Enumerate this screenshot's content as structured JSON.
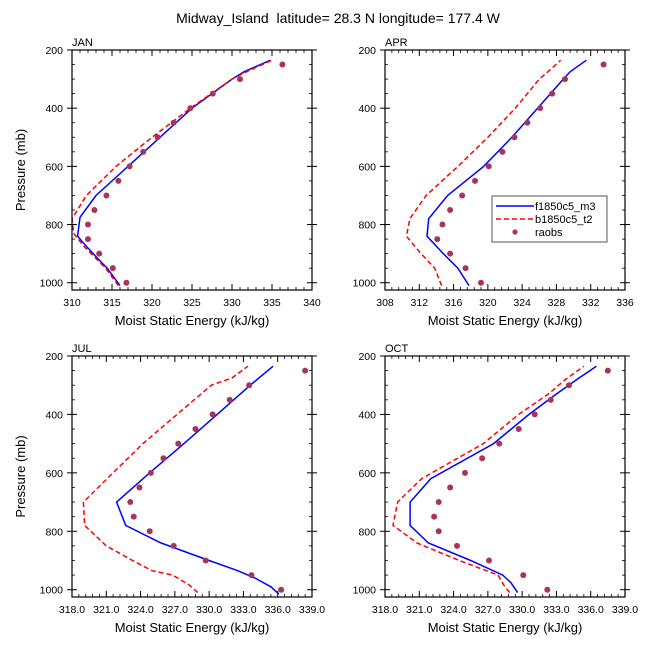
{
  "title": "Midway_Island  latitude= 28.3 N longitude= 177.4 W",
  "colors": {
    "model1": "#0000ff",
    "model2": "#ff0000",
    "obs": "#a8345e"
  },
  "legend": {
    "placement": "inside APR panel, lower-right",
    "entries": [
      {
        "label": "f1850c5_m3",
        "style": "solid line"
      },
      {
        "label": "b1850c5_t2",
        "style": "dashed line"
      },
      {
        "label": "raobs",
        "style": "marker"
      }
    ]
  },
  "chart_data": [
    {
      "type": "line",
      "panel": "JAN",
      "title": "JAN",
      "xlabel": "Moist Static Energy (kJ/kg)",
      "ylabel": "Pressure (mb)",
      "xlim": [
        310,
        340
      ],
      "ylim": [
        1025,
        200
      ],
      "xticks": [
        "310",
        "315",
        "320",
        "325",
        "330",
        "335",
        "340"
      ],
      "xtick_values": [
        310,
        315,
        320,
        325,
        330,
        335,
        340
      ],
      "yticks": [
        "200",
        "400",
        "600",
        "800",
        "1000"
      ],
      "ytick_values": [
        200,
        400,
        600,
        800,
        1000
      ],
      "series": [
        {
          "name": "f1850c5_m3",
          "style": "solid",
          "p": [
            1010,
            950,
            925,
            875,
            840,
            775,
            700,
            600,
            500,
            400,
            300,
            275,
            235
          ],
          "x": [
            316.0,
            314.4,
            313.5,
            311.8,
            310.7,
            311.0,
            313.0,
            317.0,
            321.0,
            325.0,
            330.0,
            331.5,
            334.8
          ]
        },
        {
          "name": "b1850c5_t2",
          "style": "dashed",
          "p": [
            1010,
            950,
            925,
            875,
            830,
            780,
            700,
            600,
            500,
            400,
            300,
            275,
            235
          ],
          "x": [
            315.8,
            314.2,
            313.3,
            311.5,
            310.2,
            310.0,
            311.8,
            315.5,
            320.0,
            324.8,
            330.0,
            331.8,
            335.0
          ]
        },
        {
          "name": "raobs",
          "style": "marker",
          "p": [
            1000,
            950,
            900,
            850,
            800,
            750,
            700,
            650,
            600,
            550,
            500,
            450,
            400,
            350,
            300,
            250
          ],
          "x": [
            316.8,
            315.1,
            313.4,
            312.0,
            312.0,
            312.8,
            314.3,
            315.8,
            317.2,
            318.9,
            320.7,
            322.7,
            324.8,
            327.6,
            331.0,
            336.3
          ]
        }
      ]
    },
    {
      "type": "line",
      "panel": "APR",
      "title": "APR",
      "xlabel": "Moist Static Energy (kJ/kg)",
      "ylabel": "",
      "xlim": [
        308,
        336
      ],
      "ylim": [
        1025,
        200
      ],
      "xticks": [
        "308",
        "312",
        "316",
        "320",
        "324",
        "328",
        "332",
        "336"
      ],
      "xtick_values": [
        308,
        312,
        316,
        320,
        324,
        328,
        332,
        336
      ],
      "yticks": [
        "200",
        "400",
        "600",
        "800",
        "1000"
      ],
      "ytick_values": [
        200,
        400,
        600,
        800,
        1000
      ],
      "series": [
        {
          "name": "f1850c5_m3",
          "style": "solid",
          "p": [
            1010,
            950,
            900,
            840,
            780,
            700,
            600,
            500,
            400,
            300,
            275,
            235
          ],
          "x": [
            317.8,
            316.5,
            314.8,
            312.9,
            313.1,
            315.3,
            319.5,
            322.8,
            325.8,
            328.8,
            329.6,
            331.5
          ]
        },
        {
          "name": "b1850c5_t2",
          "style": "dashed",
          "p": [
            1010,
            950,
            900,
            840,
            780,
            700,
            600,
            500,
            400,
            300,
            275,
            235
          ],
          "x": [
            314.6,
            313.8,
            312.2,
            310.5,
            310.9,
            312.8,
            316.5,
            320.0,
            323.2,
            326.0,
            327.0,
            328.5
          ]
        },
        {
          "name": "raobs",
          "style": "marker",
          "p": [
            1000,
            950,
            900,
            850,
            800,
            750,
            700,
            650,
            600,
            550,
            500,
            450,
            400,
            350,
            300,
            250
          ],
          "x": [
            319.2,
            317.4,
            315.6,
            314.1,
            314.7,
            315.6,
            317.0,
            318.5,
            320.1,
            321.7,
            323.1,
            324.6,
            326.1,
            327.5,
            329.0,
            333.5
          ]
        }
      ]
    },
    {
      "type": "line",
      "panel": "JUL",
      "title": "JUL",
      "xlabel": "Moist Static Energy (kJ/kg)",
      "ylabel": "Pressure (mb)",
      "xlim": [
        318,
        339
      ],
      "ylim": [
        1025,
        200
      ],
      "xticks": [
        "318.0",
        "321.0",
        "324.0",
        "327.0",
        "330.0",
        "333.0",
        "336.0",
        "339.0"
      ],
      "xtick_values": [
        318,
        321,
        324,
        327,
        330,
        333,
        336,
        339
      ],
      "yticks": [
        "200",
        "400",
        "600",
        "800",
        "1000"
      ],
      "ytick_values": [
        200,
        400,
        600,
        800,
        1000
      ],
      "series": [
        {
          "name": "f1850c5_m3",
          "style": "solid",
          "p": [
            1015,
            990,
            960,
            935,
            900,
            840,
            780,
            700,
            600,
            500,
            400,
            300,
            235
          ],
          "x": [
            336.1,
            335.4,
            334.0,
            332.5,
            330.0,
            325.8,
            322.7,
            321.9,
            324.8,
            327.8,
            330.7,
            333.6,
            335.6
          ]
        },
        {
          "name": "b1850c5_t2",
          "style": "dashed",
          "p": [
            1010,
            985,
            950,
            935,
            900,
            850,
            780,
            700,
            600,
            500,
            400,
            300,
            275,
            235
          ],
          "x": [
            329.0,
            328.3,
            326.8,
            325.0,
            323.3,
            321.0,
            319.1,
            319.0,
            321.6,
            324.2,
            327.2,
            330.2,
            332.0,
            333.4
          ]
        },
        {
          "name": "raobs",
          "style": "marker",
          "p": [
            1000,
            950,
            900,
            850,
            800,
            750,
            700,
            650,
            600,
            550,
            500,
            450,
            400,
            350,
            300,
            250
          ],
          "x": [
            336.3,
            333.7,
            329.7,
            326.9,
            324.8,
            323.4,
            323.1,
            323.9,
            324.9,
            326.0,
            327.3,
            328.8,
            330.3,
            331.8,
            333.5,
            338.4
          ]
        }
      ]
    },
    {
      "type": "line",
      "panel": "OCT",
      "title": "OCT",
      "xlabel": "Moist Static Energy (kJ/kg)",
      "ylabel": "",
      "xlim": [
        318,
        339
      ],
      "ylim": [
        1025,
        200
      ],
      "xticks": [
        "318.0",
        "321.0",
        "324.0",
        "327.0",
        "330.0",
        "333.0",
        "336.0",
        "339.0"
      ],
      "xtick_values": [
        318,
        321,
        324,
        327,
        330,
        333,
        336,
        339
      ],
      "yticks": [
        "200",
        "400",
        "600",
        "800",
        "1000"
      ],
      "ytick_values": [
        200,
        400,
        600,
        800,
        1000
      ],
      "series": [
        {
          "name": "f1850c5_m3",
          "style": "solid",
          "p": [
            1010,
            975,
            950,
            900,
            840,
            780,
            700,
            620,
            500,
            400,
            330,
            280,
            235
          ],
          "x": [
            329.6,
            329.0,
            328.3,
            325.5,
            321.8,
            320.2,
            320.2,
            322.0,
            327.5,
            330.6,
            333.0,
            334.8,
            336.5
          ]
        },
        {
          "name": "b1850c5_t2",
          "style": "dashed",
          "p": [
            1010,
            985,
            950,
            900,
            840,
            780,
            700,
            620,
            500,
            400,
            330,
            280,
            235
          ],
          "x": [
            328.9,
            328.4,
            327.9,
            324.5,
            320.8,
            318.7,
            319.1,
            321.2,
            326.6,
            329.7,
            332.3,
            333.8,
            335.4
          ]
        },
        {
          "name": "raobs",
          "style": "marker",
          "p": [
            1000,
            950,
            900,
            850,
            800,
            750,
            700,
            650,
            600,
            550,
            500,
            450,
            400,
            350,
            300,
            250
          ],
          "x": [
            332.2,
            330.1,
            327.1,
            324.3,
            322.7,
            322.3,
            322.7,
            323.7,
            325.0,
            326.5,
            328.0,
            329.7,
            331.1,
            332.5,
            334.1,
            337.5
          ]
        }
      ]
    }
  ]
}
